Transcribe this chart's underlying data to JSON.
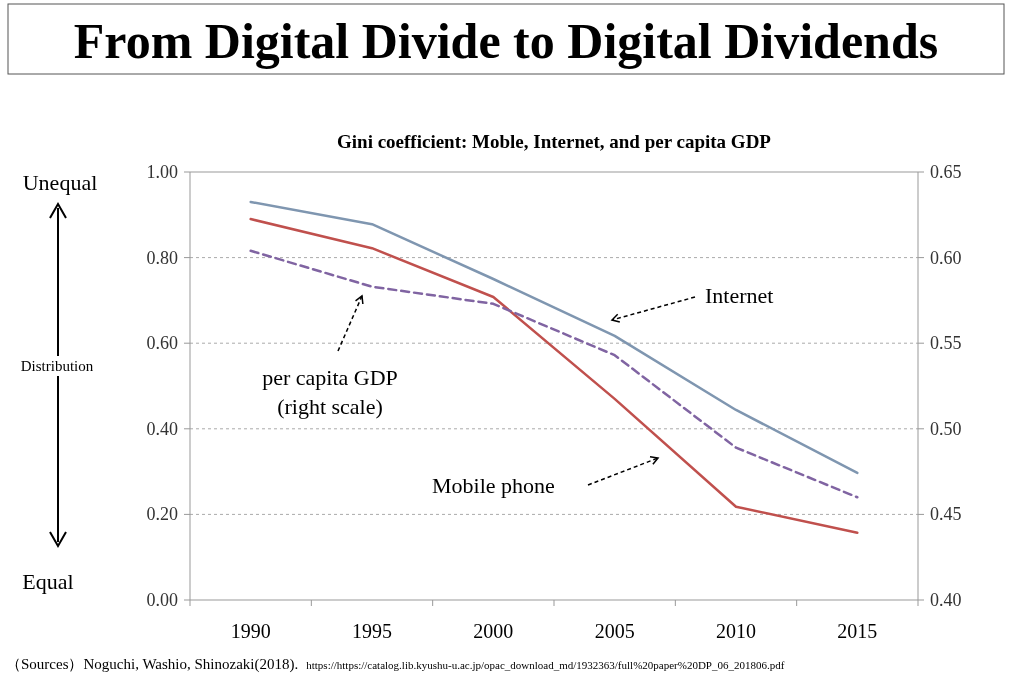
{
  "chart_data": {
    "type": "line",
    "title": "From Digital Divide to Digital Dividends",
    "subtitle": "Gini coefficient: Moble, Internet, and per capita GDP",
    "categories": [
      "1990",
      "1995",
      "2000",
      "2005",
      "2010",
      "2015"
    ],
    "series": [
      {
        "color": "#7f96b0",
        "values": [
          0.93,
          0.878,
          0.75,
          0.617,
          0.444,
          0.297
        ]
      },
      {
        "color": "#c0504d",
        "values": [
          0.89,
          0.822,
          0.708,
          0.47,
          0.218,
          0.157
        ]
      },
      {
        "color": "#8064a2",
        "line_style": "dashed",
        "axis": "y2",
        "values": [
          0.604,
          0.583,
          0.573,
          0.543,
          0.489,
          0.46
        ]
      }
    ],
    "ylim": [
      0,
      1
    ],
    "yticks": [
      {
        "value": 0,
        "label": "0.00"
      },
      {
        "value": 0.2,
        "label": "0.20"
      },
      {
        "value": 0.4,
        "label": "0.40"
      },
      {
        "value": 0.6,
        "label": "0.60"
      },
      {
        "value": 0.8,
        "label": "0.80"
      },
      {
        "value": 1,
        "label": "1.00"
      }
    ],
    "y2lim": [
      0.4,
      0.65
    ],
    "y2ticks": [
      {
        "value": 0.4,
        "label": "0.40"
      },
      {
        "value": 0.45,
        "label": "0.45"
      },
      {
        "value": 0.5,
        "label": "0.50"
      },
      {
        "value": 0.55,
        "label": "0.55"
      },
      {
        "value": 0.6,
        "label": "0.60"
      },
      {
        "value": 0.65,
        "label": "0.65"
      }
    ],
    "grid": "y",
    "marker": "none",
    "line_style": "solid",
    "annotations": [
      "Internet",
      "Mobile phone",
      "per capita GDP (right scale)",
      "Unequal",
      "Distribution",
      "Equal",
      "（Sources）Noguchi, Washio, Shinozaki(2018).",
      "https://https://catalog.lib.kyushu-u.ac.jp/opac_download_md/1932363/full%20paper%20DP_06_201806.pdf"
    ]
  }
}
